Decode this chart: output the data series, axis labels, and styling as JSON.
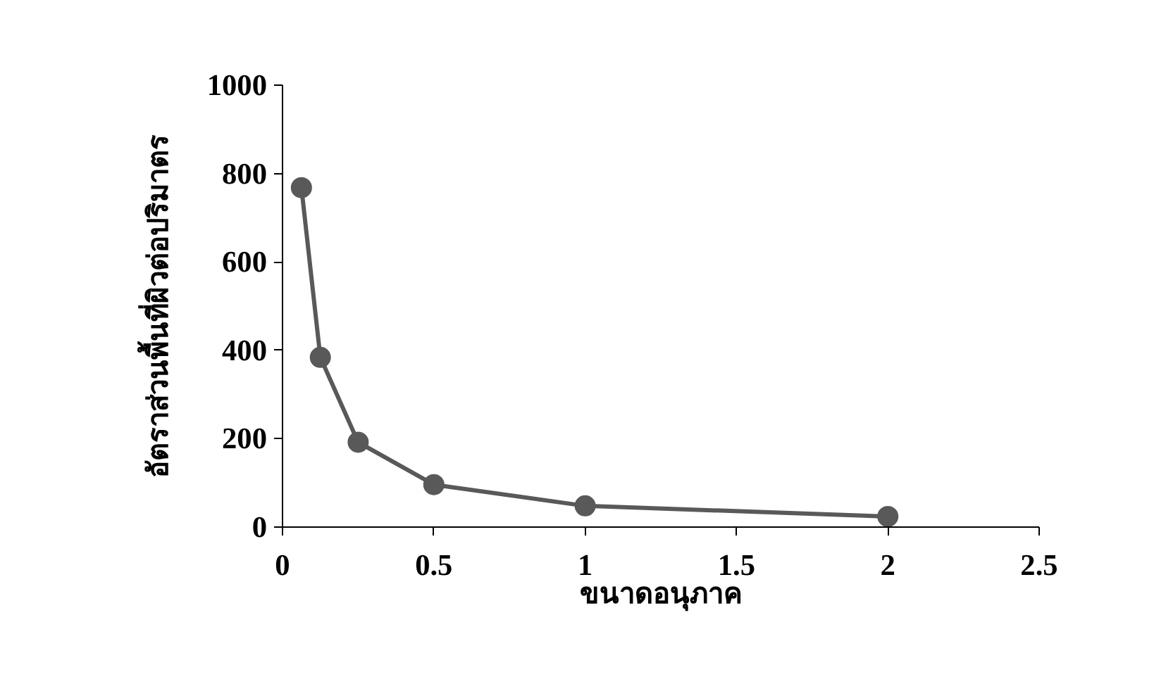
{
  "chart_data": {
    "type": "line",
    "xlabel": "ขนาดอนุภาค",
    "ylabel": "อัตราส่วนพื้นที่ผิวต่อปริมาตร",
    "x": [
      0.0625,
      0.125,
      0.25,
      0.5,
      1,
      2
    ],
    "series": [
      {
        "color": "#595959",
        "values": [
          768,
          384,
          192,
          96,
          48,
          24
        ]
      }
    ],
    "xlim": [
      0,
      2.5
    ],
    "ylim": [
      0,
      1000
    ],
    "xticks": [
      0,
      0.5,
      1,
      1.5,
      2,
      2.5
    ],
    "yticks": [
      0,
      200,
      400,
      600,
      800,
      1000
    ],
    "marker": "circle",
    "line_style": "solid",
    "grid": false
  }
}
